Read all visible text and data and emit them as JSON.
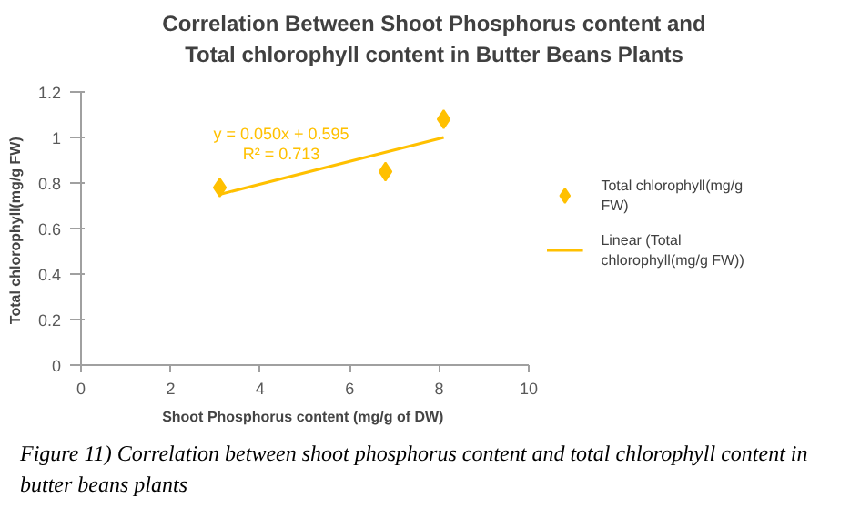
{
  "chart_data": {
    "type": "scatter",
    "title": "Correlation Between Shoot Phosphorus content and\nTotal chlorophyll content in Butter Beans  Plants",
    "xlabel": "Shoot Phosphorus content (mg/g of  DW)",
    "ylabel": "Total chlorophyll(mg/g  FW)",
    "series": [
      {
        "name": "Total chlorophyll(mg/g FW)",
        "type": "scatter",
        "color": "#ffc000",
        "marker": "diamond",
        "x": [
          3.1,
          6.8,
          8.1
        ],
        "values": [
          0.78,
          0.85,
          1.08
        ]
      },
      {
        "name": "Linear (Total chlorophyll(mg/g FW))",
        "type": "line",
        "color": "#ffc000",
        "marker": "none",
        "x": [
          3.1,
          8.1
        ],
        "values": [
          0.75,
          1.0
        ]
      }
    ],
    "xlim": [
      0,
      10
    ],
    "xticks": [
      0,
      2,
      4,
      6,
      8,
      10
    ],
    "ylim": [
      0,
      1.2
    ],
    "yticks": [
      0,
      0.2,
      0.4,
      0.6,
      0.8,
      1,
      1.2
    ],
    "grid": false,
    "legend": "right",
    "annotations": [
      "y = 0.050x + 0.595",
      "R² = 0.713",
      "Figure 11) Correlation between shoot phosphorus content and total chlorophyll content in butter beans plants"
    ]
  }
}
